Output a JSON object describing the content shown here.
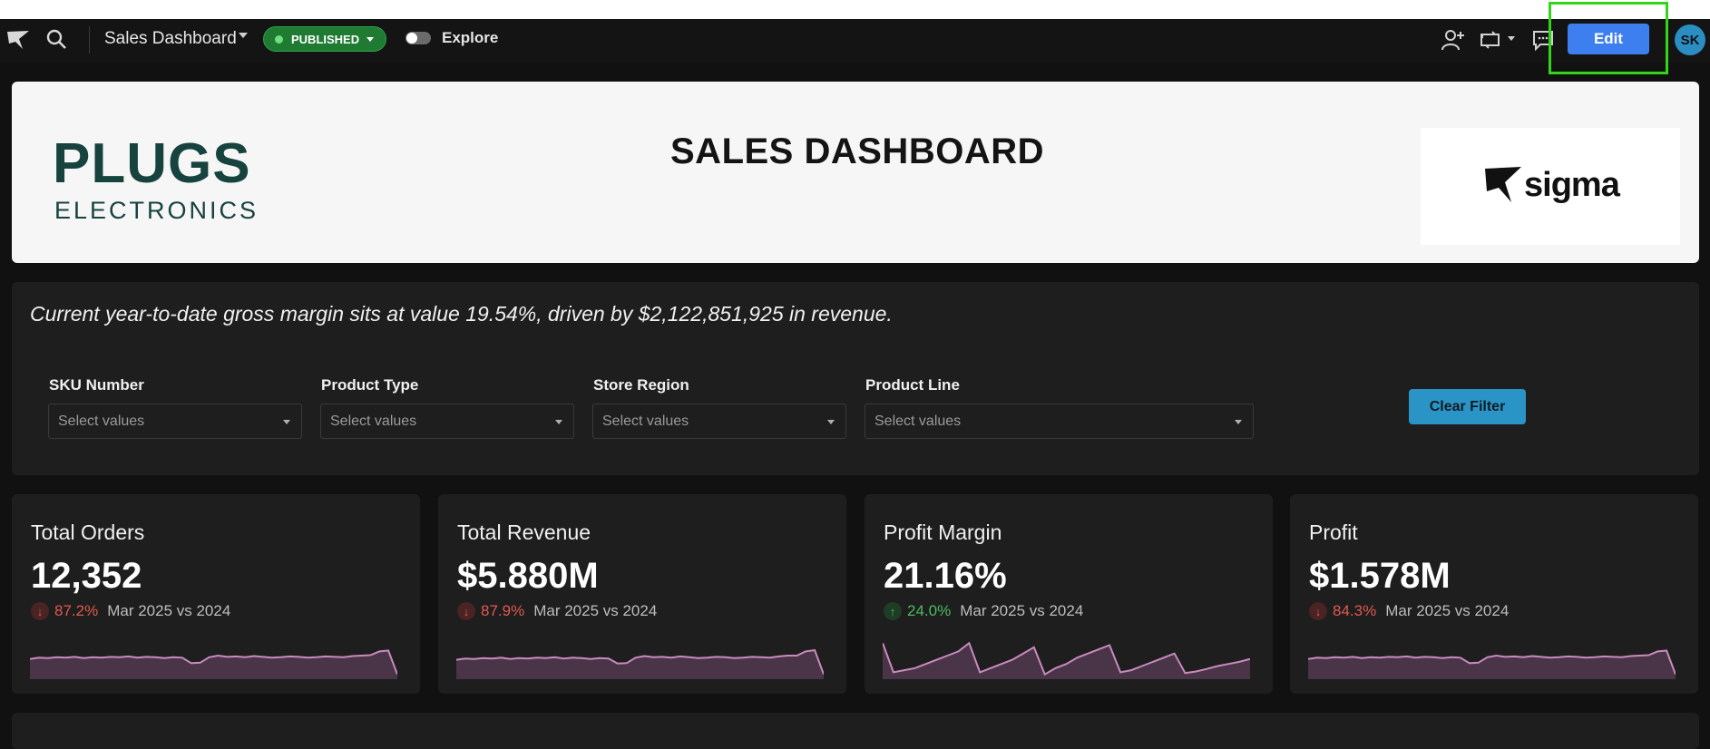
{
  "topbar": {
    "doc_title": "Sales Dashboard",
    "status_label": "PUBLISHED",
    "explore_label": "Explore",
    "edit_label": "Edit",
    "avatar_initials": "SK"
  },
  "header": {
    "title": "SALES DASHBOARD",
    "logo_primary": "PLUGS",
    "logo_secondary": "ELECTRONICS",
    "partner_logo": "sigma"
  },
  "summary": "Current year-to-date gross margin sits at value 19.54%, driven by $2,122,851,925 in revenue.",
  "filters": [
    {
      "label": "SKU Number",
      "placeholder": "Select values"
    },
    {
      "label": "Product Type",
      "placeholder": "Select values"
    },
    {
      "label": "Store Region",
      "placeholder": "Select values"
    },
    {
      "label": "Product Line",
      "placeholder": "Select values"
    }
  ],
  "clear_filter_label": "Clear Filter",
  "kpis": [
    {
      "title": "Total Orders",
      "value": "12,352",
      "direction": "down",
      "delta": "87.2%",
      "period": "Mar 2025 vs 2024",
      "trend": [
        0.42,
        0.45,
        0.44,
        0.46,
        0.45,
        0.47,
        0.44,
        0.46,
        0.45,
        0.47,
        0.46,
        0.48,
        0.45,
        0.47,
        0.46,
        0.44,
        0.46,
        0.45,
        0.32,
        0.33,
        0.46,
        0.5,
        0.47,
        0.48,
        0.46,
        0.49,
        0.47,
        0.45,
        0.46,
        0.48,
        0.47,
        0.45,
        0.46,
        0.48,
        0.47,
        0.46,
        0.49,
        0.5,
        0.51,
        0.6,
        0.62,
        0.05
      ]
    },
    {
      "title": "Total Revenue",
      "value": "$5.880M",
      "direction": "down",
      "delta": "87.9%",
      "period": "Mar 2025 vs 2024",
      "trend": [
        0.4,
        0.43,
        0.42,
        0.44,
        0.43,
        0.45,
        0.42,
        0.44,
        0.43,
        0.45,
        0.44,
        0.46,
        0.43,
        0.45,
        0.44,
        0.42,
        0.44,
        0.43,
        0.31,
        0.32,
        0.45,
        0.49,
        0.46,
        0.47,
        0.45,
        0.48,
        0.46,
        0.44,
        0.45,
        0.47,
        0.46,
        0.44,
        0.45,
        0.47,
        0.46,
        0.45,
        0.48,
        0.5,
        0.5,
        0.6,
        0.63,
        0.05
      ]
    },
    {
      "title": "Profit Margin",
      "value": "21.16%",
      "direction": "up",
      "delta": "24.0%",
      "period": "Mar 2025 vs 2024",
      "trend": [
        0.8,
        0.1,
        0.15,
        0.2,
        0.3,
        0.4,
        0.5,
        0.6,
        0.8,
        0.1,
        0.2,
        0.3,
        0.4,
        0.55,
        0.7,
        0.05,
        0.2,
        0.3,
        0.45,
        0.55,
        0.65,
        0.75,
        0.1,
        0.15,
        0.25,
        0.35,
        0.45,
        0.55,
        0.08,
        0.12,
        0.18,
        0.25,
        0.3,
        0.35,
        0.42
      ]
    },
    {
      "title": "Profit",
      "value": "$1.578M",
      "direction": "down",
      "delta": "84.3%",
      "period": "Mar 2025 vs 2024",
      "trend": [
        0.42,
        0.45,
        0.44,
        0.46,
        0.45,
        0.47,
        0.44,
        0.46,
        0.45,
        0.47,
        0.46,
        0.48,
        0.45,
        0.47,
        0.46,
        0.44,
        0.46,
        0.45,
        0.32,
        0.33,
        0.46,
        0.5,
        0.47,
        0.48,
        0.46,
        0.49,
        0.47,
        0.45,
        0.46,
        0.48,
        0.47,
        0.45,
        0.46,
        0.48,
        0.47,
        0.46,
        0.49,
        0.5,
        0.51,
        0.6,
        0.62,
        0.05
      ]
    }
  ],
  "colors": {
    "accent": "#3e7ff0",
    "published": "#1f7a32",
    "clear_button": "#2b94c7",
    "spark_line": "#c98bbf",
    "negative": "#e05a4f",
    "positive": "#4cbb60"
  }
}
